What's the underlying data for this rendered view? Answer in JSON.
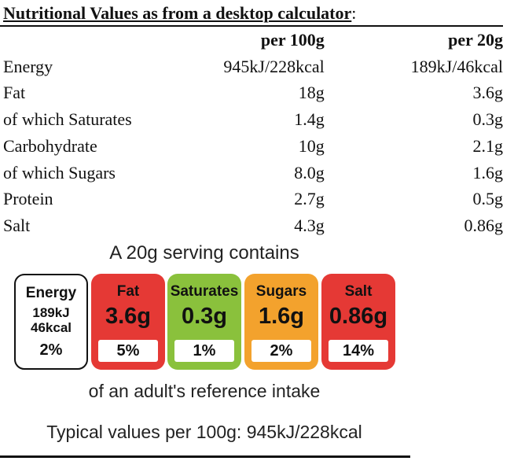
{
  "header": {
    "title": "Nutritional Values as from a desktop calculator",
    "colon": ":"
  },
  "table": {
    "columns": [
      "per 100g",
      "per 20g"
    ],
    "rows": [
      {
        "label": "Energy",
        "per100": "945kJ/228kcal",
        "per20": "189kJ/46kcal"
      },
      {
        "label": "Fat",
        "per100": "18g",
        "per20": "3.6g"
      },
      {
        "label": "of which Saturates",
        "per100": "1.4g",
        "per20": "0.3g"
      },
      {
        "label": "Carbohydrate",
        "per100": "10g",
        "per20": "2.1g"
      },
      {
        "label": "of which Sugars",
        "per100": "8.0g",
        "per20": "1.6g"
      },
      {
        "label": "Protein",
        "per100": "2.7g",
        "per20": "0.5g"
      },
      {
        "label": "Salt",
        "per100": "4.3g",
        "per20": "0.86g"
      }
    ]
  },
  "label": {
    "heading": "A 20g serving contains",
    "energy": {
      "name": "Energy",
      "kj": "189kJ",
      "kcal": "46kcal",
      "pct": "2%"
    },
    "fat": {
      "name": "Fat",
      "amount": "3.6g",
      "pct": "5%",
      "color": "#e53935"
    },
    "saturates": {
      "name": "Saturates",
      "amount": "0.3g",
      "pct": "1%",
      "color": "#8ac13c"
    },
    "sugars": {
      "name": "Sugars",
      "amount": "1.6g",
      "pct": "2%",
      "color": "#f3a22d"
    },
    "salt": {
      "name": "Salt",
      "amount": "0.86g",
      "pct": "14%",
      "color": "#e53935"
    },
    "reference": "of an adult's reference intake",
    "typical": "Typical values per 100g: 945kJ/228kcal"
  }
}
